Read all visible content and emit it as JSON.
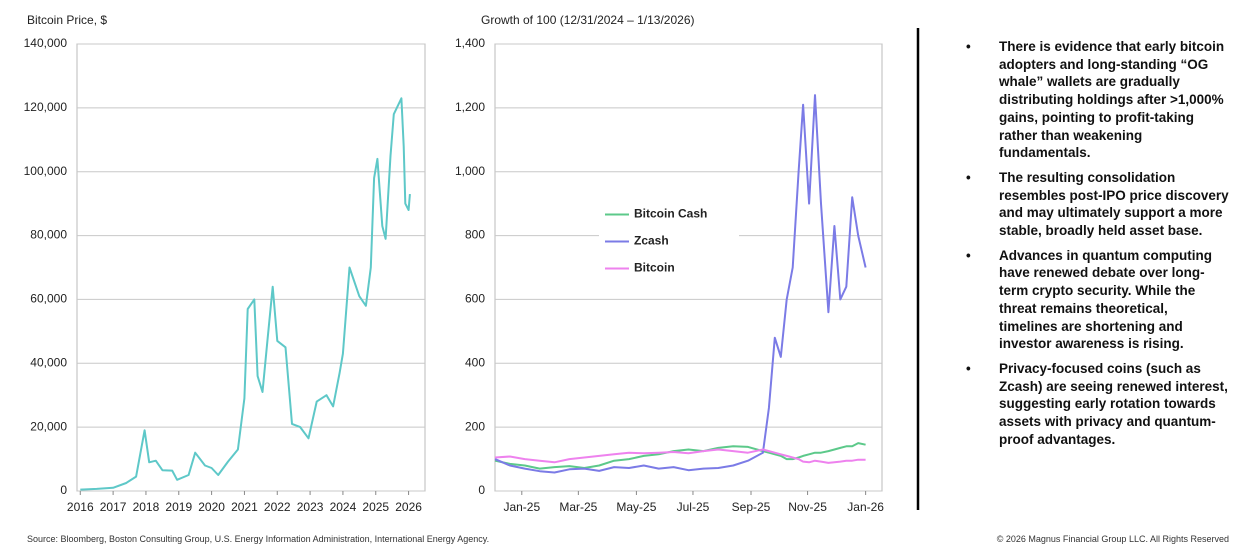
{
  "chart_data": [
    {
      "type": "line",
      "title": "Bitcoin Price, $",
      "x": [
        2016.0,
        2016.5,
        2017.0,
        2017.4,
        2017.7,
        2017.96,
        2018.1,
        2018.3,
        2018.5,
        2018.8,
        2018.95,
        2019.3,
        2019.5,
        2019.8,
        2020.0,
        2020.2,
        2020.5,
        2020.8,
        2021.0,
        2021.1,
        2021.3,
        2021.4,
        2021.55,
        2021.7,
        2021.86,
        2022.0,
        2022.25,
        2022.45,
        2022.7,
        2022.95,
        2023.2,
        2023.5,
        2023.7,
        2023.9,
        2024.0,
        2024.2,
        2024.5,
        2024.7,
        2024.85,
        2024.95,
        2025.05,
        2025.2,
        2025.3,
        2025.45,
        2025.55,
        2025.78,
        2025.85,
        2025.9,
        2026.0,
        2026.04
      ],
      "series": [
        {
          "name": "Bitcoin",
          "color": "#5ec8c8",
          "values": [
            430,
            650,
            1000,
            2500,
            4500,
            19000,
            9000,
            9500,
            6500,
            6400,
            3500,
            5000,
            12000,
            8000,
            7200,
            5000,
            9200,
            13000,
            29000,
            57000,
            60000,
            36000,
            31000,
            47000,
            64000,
            47000,
            45000,
            21000,
            20000,
            16500,
            28000,
            30000,
            26500,
            37000,
            43000,
            70000,
            61000,
            58000,
            70000,
            98000,
            104000,
            83000,
            79000,
            105000,
            118000,
            123000,
            108000,
            90000,
            88000,
            93000
          ]
        }
      ],
      "xlim": [
        2015.9,
        2026.5
      ],
      "xticks": [
        2016,
        2017,
        2018,
        2019,
        2020,
        2021,
        2022,
        2023,
        2024,
        2025,
        2026
      ],
      "ylim": [
        0,
        140000
      ],
      "yticks": [
        0,
        {
          "value": 20000,
          "label": "20,000"
        },
        {
          "value": 40000,
          "label": "40,000"
        },
        {
          "value": 60000,
          "label": "60,000"
        },
        {
          "value": 80000,
          "label": "80,000"
        },
        {
          "value": 100000,
          "label": "100,000"
        },
        {
          "value": 120000,
          "label": "120,000"
        },
        {
          "value": 140000,
          "label": "140,000"
        }
      ],
      "grid": true
    },
    {
      "type": "line",
      "title": "Growth of 100 (12/31/2024 – 1/13/2026)",
      "x": [
        0,
        0.5,
        1,
        1.5,
        2,
        2.5,
        3,
        3.5,
        4,
        4.5,
        5,
        5.5,
        6,
        6.5,
        7,
        7.5,
        8,
        8.5,
        9,
        9.2,
        9.4,
        9.6,
        9.8,
        10,
        10.2,
        10.35,
        10.55,
        10.75,
        10.95,
        11.2,
        11.4,
        11.6,
        11.8,
        12,
        12.2,
        12.45
      ],
      "series": [
        {
          "name": "Bitcoin Cash",
          "color": "#5cc98a",
          "values": [
            95,
            85,
            80,
            70,
            75,
            78,
            72,
            80,
            95,
            100,
            110,
            115,
            125,
            130,
            125,
            135,
            140,
            138,
            125,
            120,
            115,
            110,
            100,
            100,
            105,
            110,
            115,
            120,
            120,
            125,
            130,
            135,
            140,
            140,
            150,
            145
          ]
        },
        {
          "name": "Zcash",
          "color": "#7b7be6",
          "values": [
            100,
            80,
            70,
            62,
            58,
            68,
            70,
            63,
            75,
            72,
            80,
            70,
            75,
            65,
            70,
            72,
            80,
            95,
            120,
            260,
            480,
            420,
            600,
            700,
            1000,
            1210,
            900,
            1240,
            900,
            560,
            830,
            600,
            640,
            920,
            800,
            700
          ]
        },
        {
          "name": "Bitcoin",
          "color": "#ee82ee",
          "values": [
            105,
            108,
            100,
            95,
            90,
            100,
            105,
            110,
            115,
            120,
            118,
            120,
            122,
            118,
            125,
            130,
            125,
            120,
            130,
            125,
            120,
            115,
            110,
            105,
            100,
            92,
            90,
            95,
            92,
            88,
            90,
            92,
            95,
            95,
            98,
            98
          ]
        }
      ],
      "xlim": [
        0,
        13
      ],
      "xticks": [
        {
          "value": 0.9,
          "label": "Jan-25"
        },
        {
          "value": 2.8,
          "label": "Mar-25"
        },
        {
          "value": 4.75,
          "label": "May-25"
        },
        {
          "value": 6.65,
          "label": "Jul-25"
        },
        {
          "value": 8.6,
          "label": "Sep-25"
        },
        {
          "value": 10.5,
          "label": "Nov-25"
        },
        {
          "value": 12.45,
          "label": "Jan-26"
        }
      ],
      "ylim": [
        0,
        1400
      ],
      "yticks": [
        0,
        200,
        400,
        600,
        800,
        {
          "value": 1000,
          "label": "1,000"
        },
        {
          "value": 1200,
          "label": "1,200"
        },
        {
          "value": 1400,
          "label": "1,400"
        }
      ],
      "grid": true,
      "legend": "center-left"
    }
  ],
  "bullets": [
    "There is evidence that early bitcoin adopters and long-standing “OG whale” wallets are gradually distributing holdings after >1,000% gains, pointing to profit-taking rather than weakening fundamentals.",
    "The resulting consolidation resembles post-IPO price discovery and may ultimately support a more stable, broadly held asset base.",
    "Advances in quantum computing have renewed debate over long-term crypto security. While the threat remains theoretical, timelines are shortening and investor awareness is rising.",
    "Privacy-focused coins (such as Zcash) are seeing renewed interest, suggesting early rotation towards assets with privacy and quantum-proof advantages."
  ],
  "source": "Source: Bloomberg, Boston Consulting Group, U.S. Energy Information Administration, International Energy Agency.",
  "copyright": "© 2026 Magnus Financial Group LLC. All Rights Reserved"
}
